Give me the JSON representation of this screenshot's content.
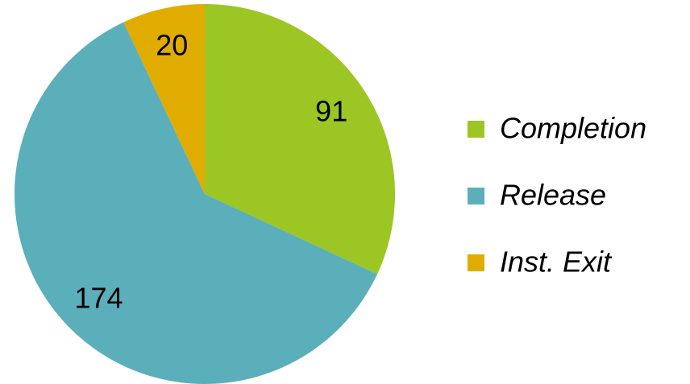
{
  "chart_data": {
    "type": "pie",
    "categories": [
      "Completion",
      "Release",
      "Inst. Exit"
    ],
    "values": [
      91,
      174,
      20
    ],
    "colors": [
      "#9bc623",
      "#5bafba",
      "#e0ac00"
    ],
    "legend": "right"
  }
}
